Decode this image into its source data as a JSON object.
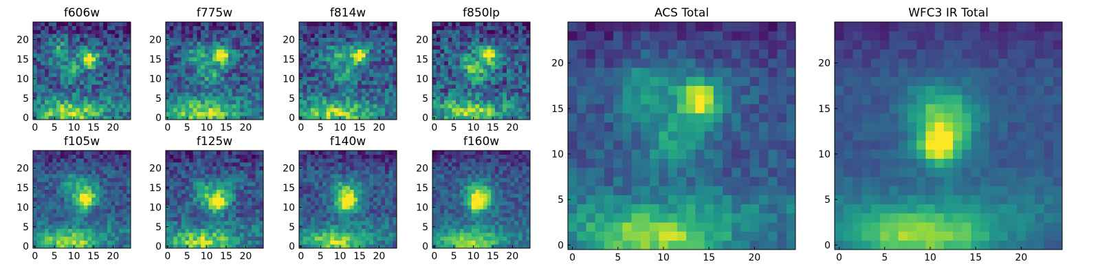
{
  "chart_data": [
    {
      "type": "heatmap",
      "title": "f606w",
      "grid_size": 25,
      "xlim": [
        0,
        24
      ],
      "ylim": [
        0,
        24
      ],
      "xticks": [
        0,
        5,
        10,
        15,
        20
      ],
      "yticks": [
        0,
        5,
        10,
        15,
        20
      ],
      "colormap": "viridis",
      "features": {
        "hotspot": [
          14,
          15
        ],
        "arc": [
          [
            6,
            18
          ],
          [
            9,
            12
          ],
          [
            14,
            15
          ]
        ],
        "bottom_band": true,
        "noise": 0.42
      }
    },
    {
      "type": "heatmap",
      "title": "f775w",
      "grid_size": 25,
      "xlim": [
        0,
        24
      ],
      "ylim": [
        0,
        24
      ],
      "xticks": [
        0,
        5,
        10,
        15,
        20
      ],
      "yticks": [
        0,
        5,
        10,
        15,
        20
      ],
      "colormap": "viridis",
      "features": {
        "hotspot": [
          14,
          16
        ],
        "arc": [
          [
            8,
            16
          ],
          [
            11,
            11
          ],
          [
            14,
            16
          ]
        ],
        "bottom_band": true,
        "noise": 0.4
      }
    },
    {
      "type": "heatmap",
      "title": "f814w",
      "grid_size": 25,
      "xlim": [
        0,
        24
      ],
      "ylim": [
        0,
        24
      ],
      "xticks": [
        0,
        5,
        10,
        15,
        20
      ],
      "yticks": [
        0,
        5,
        10,
        15,
        20
      ],
      "colormap": "viridis",
      "features": {
        "hotspot": [
          15,
          16
        ],
        "arc": [
          [
            9,
            16
          ],
          [
            11,
            11
          ],
          [
            15,
            16
          ]
        ],
        "bottom_band": true,
        "noise": 0.4
      }
    },
    {
      "type": "heatmap",
      "title": "f850lp",
      "grid_size": 25,
      "xlim": [
        0,
        24
      ],
      "ylim": [
        0,
        24
      ],
      "xticks": [
        0,
        5,
        10,
        15,
        20
      ],
      "yticks": [
        0,
        5,
        10,
        15,
        20
      ],
      "colormap": "viridis",
      "features": {
        "hotspot": [
          14,
          16
        ],
        "arc": [
          [
            9,
            14
          ],
          [
            11,
            11
          ],
          [
            14,
            16
          ]
        ],
        "bottom_band": true,
        "noise": 0.46
      }
    },
    {
      "type": "heatmap",
      "title": "f105w",
      "grid_size": 25,
      "xlim": [
        0,
        24
      ],
      "ylim": [
        0,
        24
      ],
      "xticks": [
        0,
        5,
        10,
        15,
        20
      ],
      "yticks": [
        0,
        5,
        10,
        15,
        20
      ],
      "colormap": "viridis",
      "features": {
        "hotspot": [
          13,
          12
        ],
        "arc": [
          [
            10,
            16
          ],
          [
            12,
            11
          ],
          [
            14,
            14
          ]
        ],
        "bottom_band": true,
        "noise": 0.3
      }
    },
    {
      "type": "heatmap",
      "title": "f125w",
      "grid_size": 25,
      "xlim": [
        0,
        24
      ],
      "ylim": [
        0,
        24
      ],
      "xticks": [
        0,
        5,
        10,
        15,
        20
      ],
      "yticks": [
        0,
        5,
        10,
        15,
        20
      ],
      "colormap": "viridis",
      "features": {
        "hotspot": [
          13,
          11
        ],
        "arc": [
          [
            9,
            14
          ],
          [
            12,
            11
          ],
          [
            14,
            14
          ]
        ],
        "bottom_band": true,
        "noise": 0.34
      }
    },
    {
      "type": "heatmap",
      "title": "f140w",
      "grid_size": 25,
      "xlim": [
        0,
        24
      ],
      "ylim": [
        0,
        24
      ],
      "xticks": [
        0,
        5,
        10,
        15,
        20
      ],
      "yticks": [
        0,
        5,
        10,
        15,
        20
      ],
      "colormap": "viridis",
      "features": {
        "hotspot": [
          12,
          11
        ],
        "arc": [
          [
            10,
            14
          ],
          [
            12,
            11
          ],
          [
            13,
            14
          ]
        ],
        "bottom_band": true,
        "noise": 0.3
      }
    },
    {
      "type": "heatmap",
      "title": "f160w",
      "grid_size": 25,
      "xlim": [
        0,
        24
      ],
      "ylim": [
        0,
        24
      ],
      "xticks": [
        0,
        5,
        10,
        15,
        20
      ],
      "yticks": [
        0,
        5,
        10,
        15,
        20
      ],
      "colormap": "viridis",
      "features": {
        "hotspot": [
          11,
          11
        ],
        "arc": [
          [
            10,
            14
          ],
          [
            11,
            11
          ],
          [
            13,
            13
          ]
        ],
        "bottom_band": true,
        "noise": 0.26
      }
    },
    {
      "type": "heatmap",
      "title": "ACS Total",
      "grid_size": 25,
      "xlim": [
        0,
        24
      ],
      "ylim": [
        0,
        24
      ],
      "xticks": [
        0,
        5,
        10,
        15,
        20
      ],
      "yticks": [
        0,
        5,
        10,
        15,
        20
      ],
      "colormap": "viridis",
      "features": {
        "hotspot": [
          14,
          16
        ],
        "arc": [
          [
            8,
            17
          ],
          [
            11,
            11
          ],
          [
            14,
            16
          ]
        ],
        "bottom_band": true,
        "noise": 0.22
      }
    },
    {
      "type": "heatmap",
      "title": "WFC3 IR Total",
      "grid_size": 25,
      "xlim": [
        0,
        24
      ],
      "ylim": [
        0,
        24
      ],
      "xticks": [
        0,
        5,
        10,
        15,
        20
      ],
      "yticks": [
        0,
        5,
        10,
        15,
        20
      ],
      "colormap": "viridis",
      "features": {
        "hotspot": [
          11,
          11
        ],
        "arc": [
          [
            10,
            15
          ],
          [
            11,
            11
          ],
          [
            13,
            14
          ]
        ],
        "bottom_band": true,
        "noise": 0.12
      }
    }
  ]
}
